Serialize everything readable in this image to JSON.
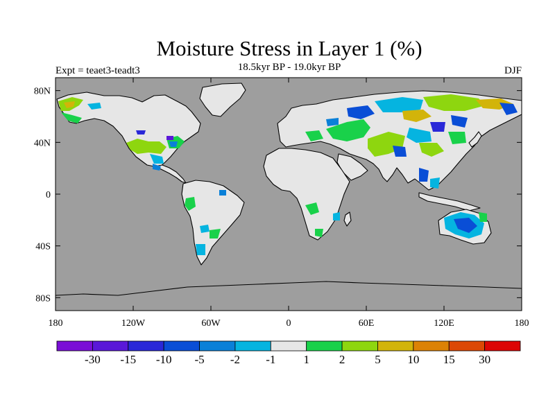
{
  "title": "Moisture Stress in Layer 1 (%)",
  "subtitle": "18.5kyr BP - 19.0kyr BP",
  "experiment": "Expt = teaet3-teadt3",
  "season": "DJF",
  "colors": {
    "ocean": "#9e9e9e",
    "land_neutral": "#e6e6e6",
    "coast": "#000000"
  },
  "map": {
    "lon_range": [
      -180,
      180
    ],
    "lat_range": [
      -90,
      90
    ],
    "x_ticks": [
      {
        "value": -180,
        "label": "180"
      },
      {
        "value": -120,
        "label": "120W"
      },
      {
        "value": -60,
        "label": "60W"
      },
      {
        "value": 0,
        "label": "0"
      },
      {
        "value": 60,
        "label": "60E"
      },
      {
        "value": 120,
        "label": "120E"
      },
      {
        "value": 180,
        "label": "180"
      }
    ],
    "y_ticks": [
      {
        "value": 80,
        "label": "80N"
      },
      {
        "value": 40,
        "label": "40N"
      },
      {
        "value": 0,
        "label": "0"
      },
      {
        "value": -40,
        "label": "40S"
      },
      {
        "value": -80,
        "label": "80S"
      }
    ]
  },
  "colorbar": {
    "colors": [
      "#7a0fd6",
      "#5a18d8",
      "#2a28d8",
      "#0a4ed6",
      "#0a80d8",
      "#05b4e0",
      "#e6e6e6",
      "#19d14a",
      "#8ed60f",
      "#d2b40a",
      "#dc8205",
      "#dc4805",
      "#dc0505"
    ],
    "labels": [
      "-30",
      "-15",
      "-10",
      "-5",
      "-2",
      "-1",
      "1",
      "2",
      "5",
      "10",
      "15",
      "30"
    ]
  }
}
